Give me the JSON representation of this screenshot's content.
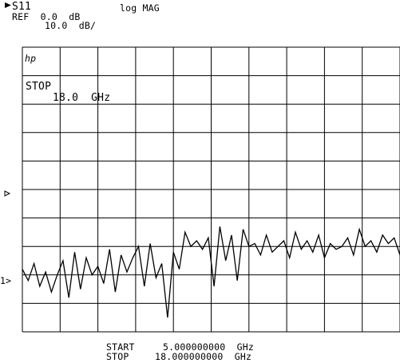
{
  "header": {
    "param": "S11",
    "format": "log MAG",
    "ref": "REF  0.0  dB",
    "scale": "10.0  dB/"
  },
  "annotations": {
    "logo": "hp",
    "marker_label": "STOP",
    "marker_value": "18.0  GHz",
    "ref_marker": "1>"
  },
  "footer": {
    "start_label": "START",
    "start_value": "5.000000000  GHz",
    "stop_label": "STOP",
    "stop_value": "18.000000000  GHz"
  },
  "colors": {
    "trace": "#000000",
    "grid": "#000000",
    "background": "#ffffff"
  },
  "chart_data": {
    "type": "line",
    "title": "",
    "xlabel": "",
    "ylabel": "",
    "x_unit": "GHz",
    "y_unit": "dB",
    "xlim": [
      5.0,
      18.0
    ],
    "ylim": [
      -100,
      0
    ],
    "grid": true,
    "x_divisions": 10,
    "y_divisions": 10,
    "ref_level": 0.0,
    "scale_per_div": 10.0,
    "series": [
      {
        "x": [
          5.0,
          5.2,
          5.4,
          5.6,
          5.8,
          6.0,
          6.2,
          6.4,
          6.6,
          6.8,
          7.0,
          7.2,
          7.4,
          7.6,
          7.8,
          8.0,
          8.2,
          8.4,
          8.6,
          8.8,
          9.0,
          9.2,
          9.4,
          9.6,
          9.8,
          10.0,
          10.2,
          10.4,
          10.6,
          10.8,
          11.0,
          11.2,
          11.4,
          11.6,
          11.8,
          12.0,
          12.2,
          12.4,
          12.6,
          12.8,
          13.0,
          13.2,
          13.4,
          13.6,
          13.8,
          14.0,
          14.2,
          14.4,
          14.6,
          14.8,
          15.0,
          15.2,
          15.4,
          15.6,
          15.8,
          16.0,
          16.2,
          16.4,
          16.6,
          16.8,
          17.0,
          17.2,
          17.4,
          17.6,
          17.8,
          18.0
        ],
        "values": [
          -78,
          -82,
          -76,
          -84,
          -79,
          -86,
          -80,
          -75,
          -88,
          -72,
          -85,
          -74,
          -80,
          -77,
          -83,
          -71,
          -86,
          -73,
          -79,
          -74,
          -70,
          -84,
          -69,
          -81,
          -76,
          -95,
          -72,
          -78,
          -65,
          -70,
          -68,
          -71,
          -67,
          -84,
          -63,
          -75,
          -66,
          -82,
          -64,
          -70,
          -69,
          -73,
          -66,
          -72,
          -70,
          -68,
          -74,
          -65,
          -71,
          -68,
          -72,
          -66,
          -74,
          -69,
          -71,
          -70,
          -67,
          -73,
          -64,
          -70,
          -68,
          -72,
          -66,
          -69,
          -67,
          -73
        ]
      }
    ]
  }
}
